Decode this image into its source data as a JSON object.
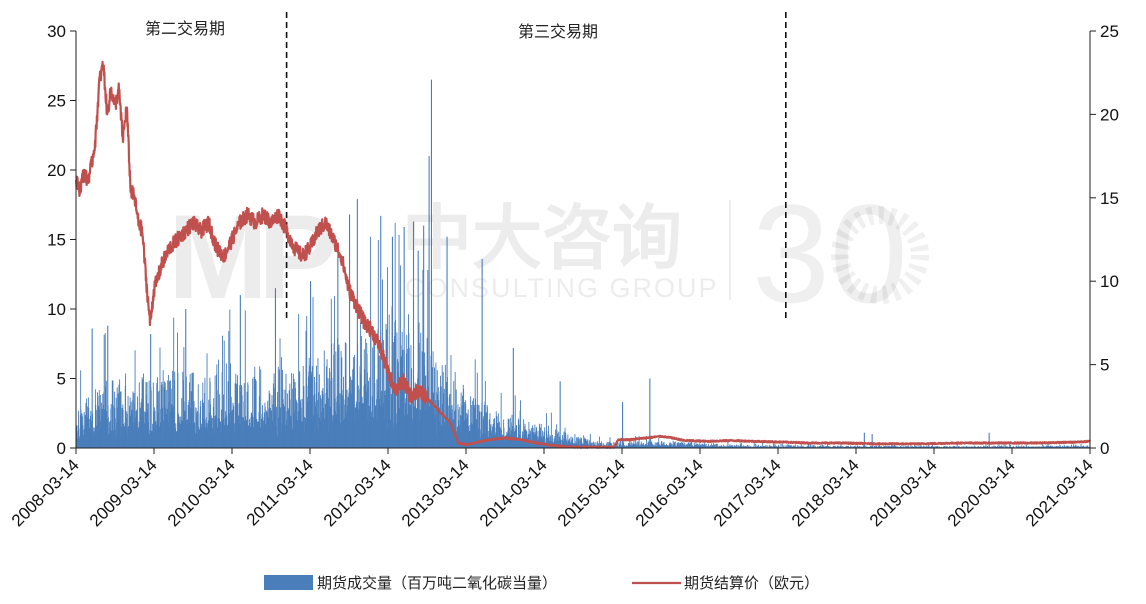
{
  "chart_data": {
    "type": "bar+line",
    "watermark": {
      "logo": "MP",
      "cn": "中大咨询",
      "en": "CONSULTING GROUP",
      "num": "30"
    },
    "x_axis": {
      "ticks": [
        "2008-03-14",
        "2009-03-14",
        "2010-03-14",
        "2011-03-14",
        "2012-03-14",
        "2013-03-14",
        "2014-03-14",
        "2015-03-14",
        "2016-03-14",
        "2017-03-14",
        "2018-03-14",
        "2019-03-14",
        "2020-03-14",
        "2021-03-14"
      ],
      "range": [
        2008.2,
        2021.2
      ]
    },
    "y_left": {
      "range": [
        0,
        30
      ],
      "ticks": [
        0,
        5,
        10,
        15,
        20,
        25,
        30
      ]
    },
    "y_right": {
      "range": [
        0,
        25
      ],
      "ticks": [
        0,
        5,
        10,
        15,
        20,
        25
      ]
    },
    "periods": [
      {
        "label": "第二交易期",
        "divider_at": null
      },
      {
        "label": "第三交易期",
        "divider_at": 2010.9
      }
    ],
    "extra_divider_at": 2017.3,
    "series": [
      {
        "name": "期货成交量（百万吨二氧化碳当量）",
        "type": "bar",
        "axis": "left",
        "color": "#4a7ebb",
        "envelope": [
          [
            2008.2,
            3.0
          ],
          [
            2008.6,
            4.2
          ],
          [
            2009.0,
            4.4
          ],
          [
            2009.5,
            4.7
          ],
          [
            2010.0,
            4.9
          ],
          [
            2010.5,
            5.1
          ],
          [
            2010.9,
            5.4
          ],
          [
            2011.3,
            5.8
          ],
          [
            2011.6,
            6.6
          ],
          [
            2011.9,
            7.6
          ],
          [
            2012.3,
            8.0
          ],
          [
            2012.6,
            7.4
          ],
          [
            2012.75,
            7.0
          ],
          [
            2012.9,
            5.2
          ],
          [
            2013.2,
            3.6
          ],
          [
            2013.5,
            2.6
          ],
          [
            2013.8,
            2.0
          ],
          [
            2014.2,
            1.4
          ],
          [
            2014.5,
            0.9
          ],
          [
            2014.8,
            0.5
          ],
          [
            2015.1,
            0.4
          ],
          [
            2015.5,
            0.45
          ],
          [
            2015.8,
            0.5
          ],
          [
            2016.1,
            0.35
          ],
          [
            2016.5,
            0.25
          ],
          [
            2017.0,
            0.2
          ],
          [
            2018.0,
            0.15
          ],
          [
            2019.0,
            0.15
          ],
          [
            2020.0,
            0.15
          ],
          [
            2021.2,
            0.15
          ]
        ],
        "spikes": [
          [
            2008.4,
            8.6
          ],
          [
            2008.6,
            8.8
          ],
          [
            2009.15,
            8.2
          ],
          [
            2009.6,
            10.0
          ],
          [
            2010.3,
            11.0
          ],
          [
            2010.75,
            11.5
          ],
          [
            2011.2,
            12.0
          ],
          [
            2011.55,
            14.0
          ],
          [
            2011.7,
            16.8
          ],
          [
            2011.8,
            17.9
          ],
          [
            2012.1,
            16.7
          ],
          [
            2012.25,
            15.2
          ],
          [
            2012.4,
            15.9
          ],
          [
            2012.52,
            16.3
          ],
          [
            2012.58,
            14.2
          ],
          [
            2012.65,
            16.0
          ],
          [
            2012.72,
            21.0
          ],
          [
            2012.75,
            26.5
          ],
          [
            2012.95,
            15.2
          ],
          [
            2013.4,
            13.6
          ],
          [
            2013.8,
            7.2
          ],
          [
            2014.4,
            4.8
          ],
          [
            2015.2,
            3.3
          ],
          [
            2015.55,
            5.0
          ],
          [
            2018.3,
            1.1
          ],
          [
            2018.4,
            1.0
          ],
          [
            2019.9,
            1.1
          ]
        ]
      },
      {
        "name": "期货结算价（欧元）",
        "type": "line",
        "axis": "right",
        "color": "#c0504d",
        "points": [
          [
            2008.2,
            16.0
          ],
          [
            2008.25,
            15.5
          ],
          [
            2008.3,
            16.5
          ],
          [
            2008.35,
            16.0
          ],
          [
            2008.4,
            17.0
          ],
          [
            2008.45,
            18.5
          ],
          [
            2008.5,
            22.0
          ],
          [
            2008.55,
            23.0
          ],
          [
            2008.6,
            20.0
          ],
          [
            2008.65,
            21.5
          ],
          [
            2008.7,
            20.5
          ],
          [
            2008.75,
            21.5
          ],
          [
            2008.8,
            18.5
          ],
          [
            2008.85,
            20.5
          ],
          [
            2008.9,
            15.5
          ],
          [
            2008.95,
            15.0
          ],
          [
            2009.0,
            13.5
          ],
          [
            2009.05,
            13.0
          ],
          [
            2009.1,
            10.0
          ],
          [
            2009.15,
            7.5
          ],
          [
            2009.2,
            9.5
          ],
          [
            2009.3,
            11.0
          ],
          [
            2009.4,
            12.0
          ],
          [
            2009.5,
            12.5
          ],
          [
            2009.6,
            13.0
          ],
          [
            2009.7,
            13.5
          ],
          [
            2009.8,
            13.0
          ],
          [
            2009.9,
            13.5
          ],
          [
            2010.0,
            12.0
          ],
          [
            2010.1,
            11.5
          ],
          [
            2010.2,
            12.5
          ],
          [
            2010.3,
            13.5
          ],
          [
            2010.4,
            14.0
          ],
          [
            2010.5,
            13.5
          ],
          [
            2010.6,
            14.0
          ],
          [
            2010.7,
            13.5
          ],
          [
            2010.8,
            14.0
          ],
          [
            2010.9,
            13.0
          ],
          [
            2011.0,
            12.0
          ],
          [
            2011.1,
            11.5
          ],
          [
            2011.2,
            12.0
          ],
          [
            2011.3,
            13.0
          ],
          [
            2011.4,
            13.5
          ],
          [
            2011.5,
            12.5
          ],
          [
            2011.6,
            11.5
          ],
          [
            2011.7,
            9.5
          ],
          [
            2011.8,
            8.5
          ],
          [
            2011.9,
            7.5
          ],
          [
            2012.0,
            7.0
          ],
          [
            2012.1,
            6.0
          ],
          [
            2012.2,
            4.5
          ],
          [
            2012.3,
            3.5
          ],
          [
            2012.4,
            4.0
          ],
          [
            2012.5,
            3.0
          ],
          [
            2012.6,
            3.5
          ],
          [
            2012.7,
            3.0
          ],
          [
            2012.8,
            2.5
          ],
          [
            2012.9,
            2.0
          ],
          [
            2013.0,
            1.5
          ],
          [
            2013.1,
            0.3
          ],
          [
            2013.2,
            0.2
          ],
          [
            2013.3,
            0.3
          ],
          [
            2013.5,
            0.5
          ],
          [
            2013.7,
            0.6
          ],
          [
            2013.9,
            0.5
          ],
          [
            2014.1,
            0.3
          ],
          [
            2014.4,
            0.1
          ],
          [
            2014.7,
            0.05
          ],
          [
            2015.0,
            0.05
          ],
          [
            2015.1,
            0.05
          ],
          [
            2015.15,
            0.5
          ],
          [
            2015.3,
            0.5
          ],
          [
            2015.5,
            0.6
          ],
          [
            2015.7,
            0.7
          ],
          [
            2015.85,
            0.6
          ],
          [
            2016.0,
            0.45
          ],
          [
            2016.3,
            0.4
          ],
          [
            2016.6,
            0.45
          ],
          [
            2016.9,
            0.4
          ],
          [
            2017.3,
            0.35
          ],
          [
            2017.6,
            0.3
          ],
          [
            2018.0,
            0.3
          ],
          [
            2018.5,
            0.25
          ],
          [
            2019.0,
            0.25
          ],
          [
            2019.5,
            0.3
          ],
          [
            2020.0,
            0.3
          ],
          [
            2020.5,
            0.3
          ],
          [
            2021.0,
            0.35
          ],
          [
            2021.2,
            0.4
          ]
        ]
      }
    ]
  }
}
